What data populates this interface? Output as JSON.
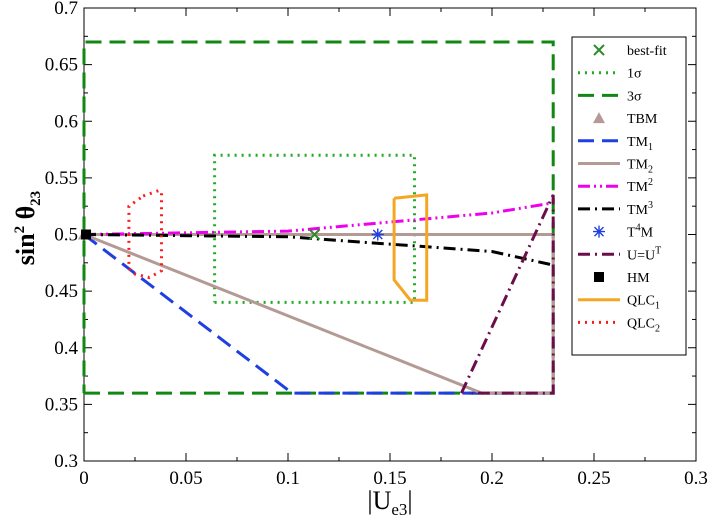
{
  "chart_data": {
    "type": "line",
    "xlim": [
      0,
      0.3
    ],
    "ylim": [
      0.3,
      0.7
    ],
    "xticks": [
      "0",
      "0.05",
      "0.1",
      "0.15",
      "0.2",
      "0.25",
      "0.3"
    ],
    "yticks": [
      "0.3",
      "0.35",
      "0.4",
      "0.45",
      "0.5",
      "0.55",
      "0.6",
      "0.65",
      "0.7"
    ],
    "xlabel": {
      "prefix": "|U",
      "sub": "e3",
      "suffix": "|"
    },
    "ylabel": {
      "base": "sin",
      "sup": "2",
      "theta": " θ",
      "sub": "23"
    },
    "legend_position": "top-right",
    "series": [
      {
        "key": "bestfit",
        "label": "best-fit",
        "kind": "marker",
        "marker": "x",
        "color": "#2e8b2e",
        "x": [
          0.113
        ],
        "y": [
          0.5
        ]
      },
      {
        "key": "sigma1",
        "label": "1σ",
        "kind": "line",
        "style": "dotted",
        "color": "#22aa22",
        "x": [
          0.064,
          0.162,
          0.162,
          0.064,
          0.064
        ],
        "y": [
          0.44,
          0.44,
          0.57,
          0.57,
          0.44
        ]
      },
      {
        "key": "sigma3",
        "label": "3σ",
        "kind": "line",
        "style": "dashed",
        "color": "#118811",
        "x": [
          0,
          0.23,
          0.23,
          0,
          0
        ],
        "y": [
          0.36,
          0.36,
          0.67,
          0.67,
          0.36
        ]
      },
      {
        "key": "tbm",
        "label": "TBM",
        "kind": "marker",
        "marker": "triangle",
        "color": "#b49a94",
        "x": [
          0
        ],
        "y": [
          0.5
        ]
      },
      {
        "key": "tm1",
        "label": "TM",
        "sub": "1",
        "kind": "line",
        "style": "dashed",
        "color": "#1f3fe0",
        "x": [
          0,
          0.102,
          0.23
        ],
        "y": [
          0.5,
          0.36,
          0.36
        ]
      },
      {
        "key": "tm2",
        "label": "TM",
        "sub": "2",
        "kind": "line",
        "style": "solid",
        "color": "#b49a94",
        "x": [
          0,
          0.195,
          0.23,
          0.23,
          0.002
        ],
        "y": [
          0.5,
          0.36,
          0.36,
          0.5,
          0.5
        ]
      },
      {
        "key": "tm_sup2",
        "label": "TM",
        "sup": "2",
        "kind": "line",
        "style": "dashdotdot",
        "color": "#ee00ee",
        "x": [
          0,
          0.1,
          0.2,
          0.23
        ],
        "y": [
          0.5,
          0.503,
          0.519,
          0.528
        ]
      },
      {
        "key": "tm_sup3",
        "label": "TM",
        "sup": "3",
        "kind": "line",
        "style": "dashdot",
        "color": "#000000",
        "x": [
          0,
          0.1,
          0.2,
          0.23
        ],
        "y": [
          0.5,
          0.498,
          0.485,
          0.473
        ]
      },
      {
        "key": "t4m",
        "label": "T",
        "sup": "4",
        "after": "M",
        "kind": "marker",
        "marker": "asterisk",
        "color": "#1f3fe0",
        "x": [
          0.144
        ],
        "y": [
          0.5
        ]
      },
      {
        "key": "uut",
        "label": "U=U",
        "sup": "T",
        "kind": "line",
        "style": "dashdot",
        "color": "#6b0f4b",
        "x": [
          0.185,
          0.23,
          0.23,
          0.19
        ],
        "y": [
          0.36,
          0.535,
          0.36,
          0.36
        ]
      },
      {
        "key": "hm",
        "label": "HM",
        "kind": "marker",
        "marker": "square",
        "color": "#000000",
        "x": [
          0.001
        ],
        "y": [
          0.5
        ]
      },
      {
        "key": "qlc1",
        "label": "QLC",
        "sub": "1",
        "kind": "line",
        "style": "solid",
        "color": "#f5a623",
        "x": [
          0.152,
          0.168,
          0.168,
          0.16,
          0.152,
          0.152
        ],
        "y": [
          0.532,
          0.535,
          0.442,
          0.442,
          0.46,
          0.532
        ]
      },
      {
        "key": "qlc2",
        "label": "QLC",
        "sub": "2",
        "kind": "line",
        "style": "dotted",
        "color": "#ff1a1a",
        "x": [
          0.029,
          0.037,
          0.038,
          0.038,
          0.032,
          0.025,
          0.022,
          0.022,
          0.029
        ],
        "y": [
          0.534,
          0.539,
          0.537,
          0.468,
          0.462,
          0.465,
          0.47,
          0.525,
          0.534
        ]
      }
    ]
  }
}
